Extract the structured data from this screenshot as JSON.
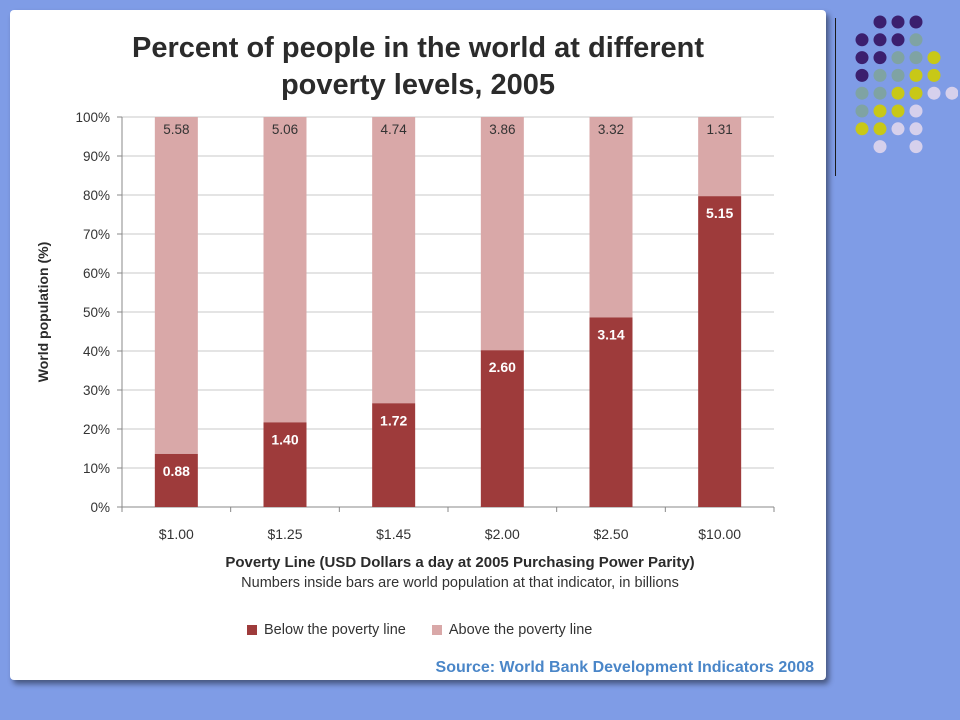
{
  "chart_data": {
    "type": "bar",
    "stacked": true,
    "title_line1": "Percent of people in the world at different",
    "title_line2": "poverty levels, 2005",
    "xlabel": "Poverty Line (USD Dollars a day at 2005 Purchasing Power Parity)",
    "note": "Numbers inside bars are world population at that indicator, in billions",
    "ylabel": "World population (%)",
    "ylim": [
      0,
      100
    ],
    "yticks": [
      "0%",
      "10%",
      "20%",
      "30%",
      "40%",
      "50%",
      "60%",
      "70%",
      "80%",
      "90%",
      "100%"
    ],
    "categories": [
      "$1.00",
      "$1.25",
      "$1.45",
      "$2.00",
      "$2.50",
      "$10.00"
    ],
    "series": [
      {
        "name": "Below the poverty line",
        "color": "#9e3b3b",
        "percent": [
          13.6,
          21.7,
          26.6,
          40.2,
          48.6,
          79.7
        ],
        "labels": [
          "0.88",
          "1.40",
          "1.72",
          "2.60",
          "3.14",
          "5.15"
        ]
      },
      {
        "name": "Above the poverty line",
        "color": "#d9a8a8",
        "percent": [
          86.4,
          78.3,
          73.4,
          59.8,
          51.4,
          20.3
        ],
        "labels": [
          "5.58",
          "5.06",
          "4.74",
          "3.86",
          "3.32",
          "1.31"
        ]
      }
    ],
    "legend_position": "bottom",
    "grid": true
  },
  "source": "Source: World Bank Development Indicators 2008",
  "colors": {
    "background": "#7f9ce6",
    "source_text": "#4a86c8",
    "dot_purple": "#3b1f6e",
    "dot_teal": "#7fa3a3",
    "dot_yellow": "#c8c817",
    "dot_lavender": "#d6d0ec"
  }
}
